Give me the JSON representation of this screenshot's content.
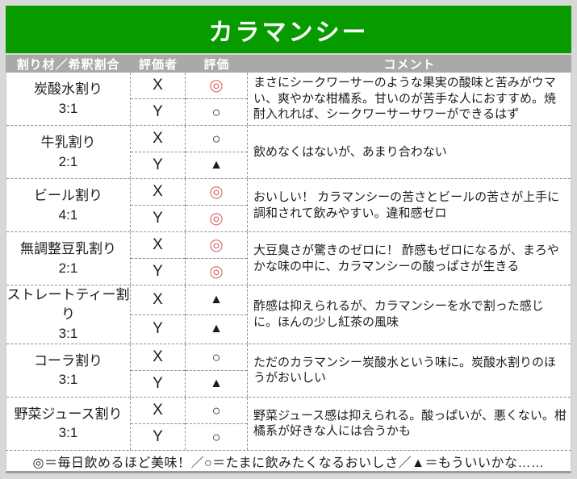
{
  "title": "カラマンシー",
  "colors": {
    "title_bg": "#089b00",
    "header_bg": "#a9a9a9",
    "excellent_mark_red": "#db6b6b",
    "mark_black": "#1c1c1c"
  },
  "table": {
    "columns": [
      {
        "label": "割り材／希釈割合"
      },
      {
        "label": "評価者"
      },
      {
        "label": "評価"
      },
      {
        "label": "コメント"
      }
    ]
  },
  "rows": [
    {
      "mixer": "炭酸水割り",
      "ratio": "3:1",
      "ratings": [
        {
          "rater": "X",
          "mark": "◎",
          "red": true
        },
        {
          "rater": "Y",
          "mark": "○",
          "red": false
        }
      ],
      "comment": "まさにシークワーサーのような果実の酸味と苦みがウマい、爽やかな柑橘系。甘いのが苦手な人におすすめ。焼酎入れれば、シークワーサーサワーができるはず"
    },
    {
      "mixer": "牛乳割り",
      "ratio": "2:1",
      "ratings": [
        {
          "rater": "X",
          "mark": "○",
          "red": false
        },
        {
          "rater": "Y",
          "mark": "▲",
          "red": false
        }
      ],
      "comment": "飲めなくはないが、あまり合わない"
    },
    {
      "mixer": "ビール割り",
      "ratio": "4:1",
      "ratings": [
        {
          "rater": "X",
          "mark": "◎",
          "red": true
        },
        {
          "rater": "Y",
          "mark": "◎",
          "red": true
        }
      ],
      "comment": "おいしい！ カラマンシーの苦さとビールの苦さが上手に調和されて飲みやすい。違和感ゼロ"
    },
    {
      "mixer": "無調整豆乳割り",
      "ratio": "2:1",
      "ratings": [
        {
          "rater": "X",
          "mark": "◎",
          "red": true
        },
        {
          "rater": "Y",
          "mark": "◎",
          "red": true
        }
      ],
      "comment": "大豆臭さが驚きのゼロに！ 酢感もゼロになるが、まろやかな味の中に、カラマンシーの酸っぱさが生きる"
    },
    {
      "mixer": "ストレートティー割り",
      "ratio": "3:1",
      "ratings": [
        {
          "rater": "X",
          "mark": "▲",
          "red": false
        },
        {
          "rater": "Y",
          "mark": "▲",
          "red": false
        }
      ],
      "comment": "酢感は抑えられるが、カラマンシーを水で割った感じに。ほんの少し紅茶の風味"
    },
    {
      "mixer": "コーラ割り",
      "ratio": "3:1",
      "ratings": [
        {
          "rater": "X",
          "mark": "○",
          "red": false
        },
        {
          "rater": "Y",
          "mark": "▲",
          "red": false
        }
      ],
      "comment": "ただのカラマンシー炭酸水という味に。炭酸水割りのほうがおいしい"
    },
    {
      "mixer": "野菜ジュース割り",
      "ratio": "3:1",
      "ratings": [
        {
          "rater": "X",
          "mark": "○",
          "red": false
        },
        {
          "rater": "Y",
          "mark": "○",
          "red": false
        }
      ],
      "comment": "野菜ジュース感は抑えられる。酸っぱいが、悪くない。柑橘系が好きな人には合うかも"
    }
  ],
  "legend": "◎＝毎日飲めるほど美味！／○＝たまに飲みたくなるおいしさ／▲＝もういいかな……"
}
